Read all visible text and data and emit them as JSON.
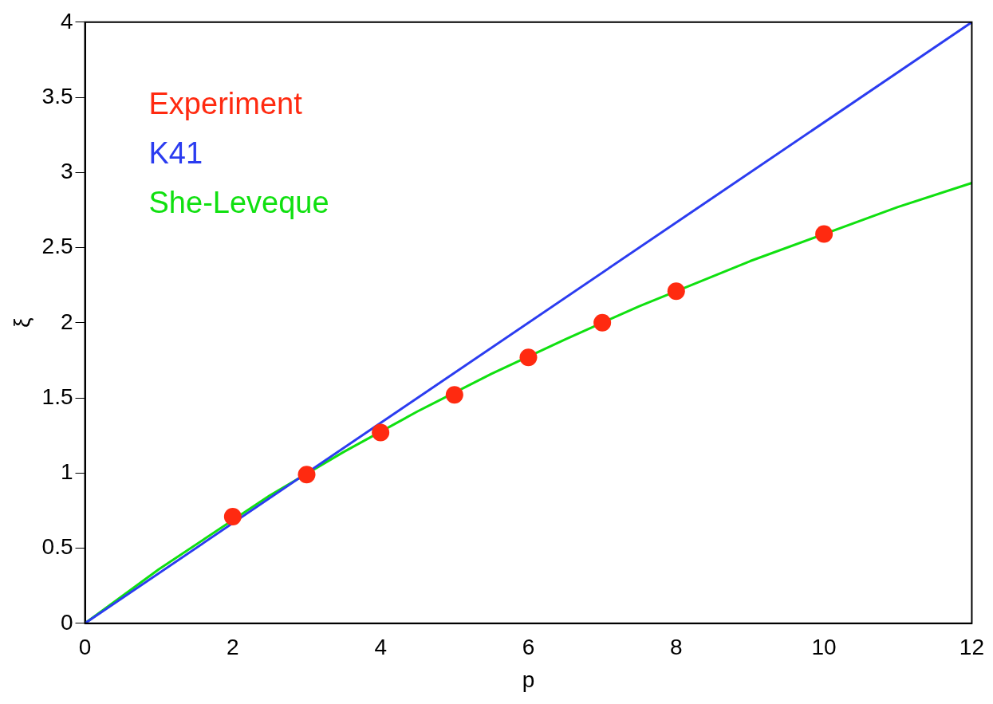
{
  "chart_data": {
    "type": "line",
    "xlabel": "p",
    "ylabel": "ξ",
    "xlim": [
      0,
      12
    ],
    "ylim": [
      0,
      4
    ],
    "xticks": [
      0,
      2,
      4,
      6,
      8,
      10,
      12
    ],
    "yticks": [
      0,
      0.5,
      1,
      1.5,
      2,
      2.5,
      3,
      3.5,
      4
    ],
    "grid": false,
    "legend": "top left",
    "series": [
      {
        "name": "Experiment",
        "type": "scatter",
        "color": "#ff2a10",
        "marker": "circle",
        "x": [
          2,
          3,
          4,
          5,
          6,
          7,
          8,
          10
        ],
        "values": [
          0.71,
          0.99,
          1.27,
          1.52,
          1.77,
          2.0,
          2.21,
          2.59
        ]
      },
      {
        "name": "K41",
        "color": "#2b3cf0",
        "marker": "none",
        "x": [
          0,
          12
        ],
        "values": [
          0,
          4
        ]
      },
      {
        "name": "She-Leveque",
        "color": "#10e010",
        "marker": "none",
        "x": [
          0,
          1,
          2.5,
          3.5,
          4.5,
          5.5,
          6.5,
          7.5,
          9,
          11,
          12
        ],
        "values": [
          0,
          0.36,
          0.85,
          1.14,
          1.41,
          1.66,
          1.89,
          2.11,
          2.41,
          2.77,
          2.93
        ]
      }
    ]
  }
}
